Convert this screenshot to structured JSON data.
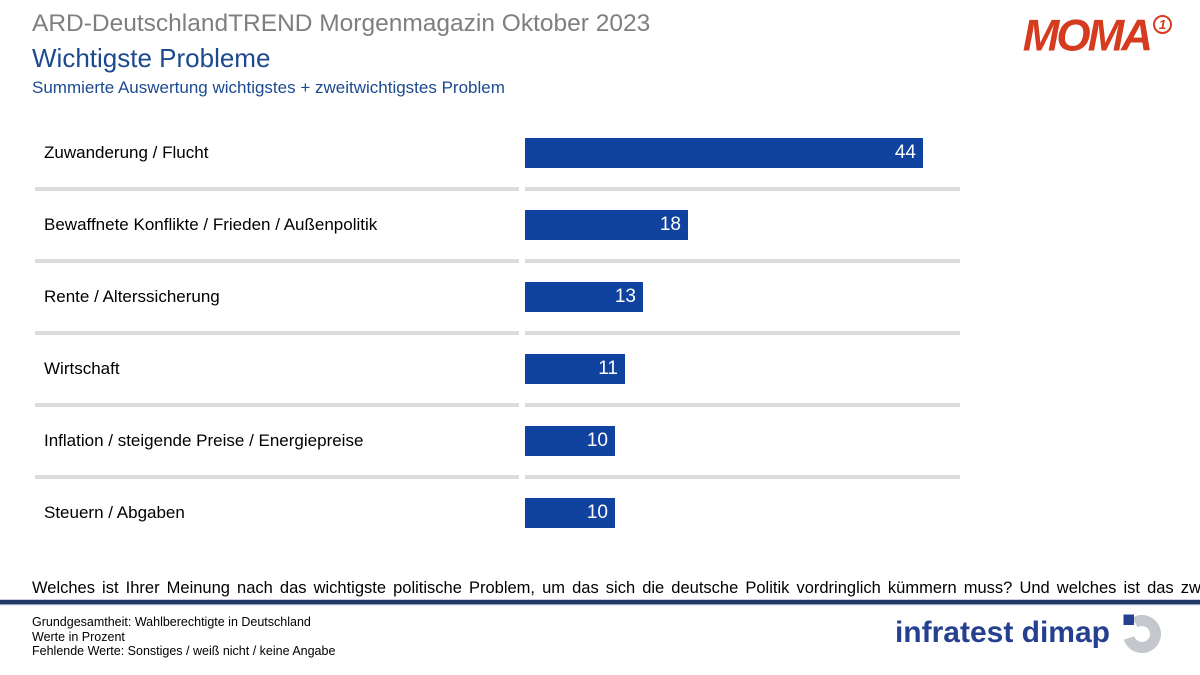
{
  "header": {
    "toptitle": "ARD-DeutschlandTREND Morgenmagazin Oktober 2023",
    "title": "Wichtigste Probleme",
    "subtitle": "Summierte Auswertung wichtigstes + zweitwichtigstes Problem"
  },
  "moma_logo": {
    "text": "MOMA",
    "ard_one": "1",
    "color": "#d53b1e"
  },
  "chart_data": {
    "type": "bar",
    "orientation": "horizontal",
    "title": "Wichtigste Probleme",
    "subtitle": "Summierte Auswertung wichtigstes + zweitwichtigstes Problem",
    "unit": "Prozent",
    "categories": [
      "Zuwanderung / Flucht",
      "Bewaffnete Konflikte / Frieden / Außenpolitik",
      "Rente / Alterssicherung",
      "Wirtschaft",
      "Inflation / steigende Preise / Energiepreise",
      "Steuern / Abgaben"
    ],
    "values": [
      44,
      18,
      13,
      11,
      10,
      10
    ],
    "value_labels": [
      "44",
      "18",
      "13",
      "11",
      "10",
      "10"
    ],
    "value_axis_max": 48,
    "bar_color": "#10429f",
    "value_label_color": "#ffffff",
    "grid": false,
    "legend": false
  },
  "question": "Welches ist Ihrer Meinung nach das wichtigste politische Problem, um das sich die deutsche Politik vordringlich kümmern muss? Und welches ist das zweitwichtigste?",
  "footnotes": {
    "line1": "Grundgesamtheit: Wahlberechtigte in Deutschland",
    "line2": "Werte in Prozent",
    "line3": "Fehlende Werte: Sonstiges / weiß nicht / keine Angabe"
  },
  "branding": {
    "infratest_label": "infratest dimap",
    "infratest_color": "#25408f",
    "logo_gray": "#c4c8cd"
  }
}
